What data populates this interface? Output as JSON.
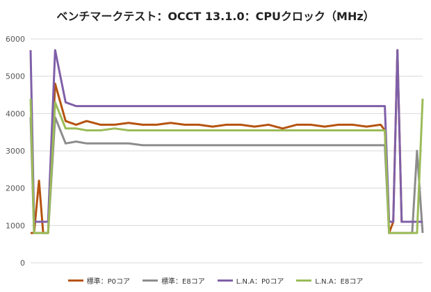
{
  "chart_data": {
    "type": "line",
    "title": "ベンチマークテスト：OCCT 13.1.0：CPUクロック（MHz）",
    "xlabel": "",
    "ylabel": "",
    "ylim": [
      0,
      6000
    ],
    "yticks": [
      "0",
      "1000",
      "2000",
      "3000",
      "4000",
      "5000",
      "6000"
    ],
    "grid": true,
    "legend_position": "bottom",
    "x": [
      0,
      5,
      12,
      18,
      25,
      35,
      50,
      65,
      80,
      100,
      120,
      140,
      160,
      180,
      200,
      220,
      240,
      260,
      280,
      300,
      320,
      340,
      360,
      380,
      400,
      420,
      440,
      460,
      480,
      500,
      506,
      512,
      518,
      524,
      530,
      536,
      540,
      545,
      552,
      560
    ],
    "series": [
      {
        "name": "標準：P0コア",
        "color": "#b5530f",
        "values": [
          800,
          800,
          2200,
          800,
          800,
          4800,
          3800,
          3700,
          3800,
          3700,
          3700,
          3750,
          3700,
          3700,
          3750,
          3700,
          3700,
          3650,
          3700,
          3700,
          3650,
          3700,
          3600,
          3700,
          3700,
          3650,
          3700,
          3700,
          3650,
          3700,
          3550,
          800,
          1100,
          5700,
          1100,
          1100,
          1100,
          1100,
          1100,
          1100
        ]
      },
      {
        "name": "標準：E8コア",
        "color": "#8c8c8c",
        "values": [
          3900,
          800,
          800,
          800,
          800,
          3900,
          3200,
          3250,
          3200,
          3200,
          3200,
          3200,
          3150,
          3150,
          3150,
          3150,
          3150,
          3150,
          3150,
          3150,
          3150,
          3150,
          3150,
          3150,
          3150,
          3150,
          3150,
          3150,
          3150,
          3150,
          3150,
          800,
          800,
          800,
          800,
          800,
          800,
          800,
          3000,
          800
        ]
      },
      {
        "name": "L.N.A：P0コア",
        "color": "#7f5fa8",
        "values": [
          5700,
          1100,
          1100,
          1100,
          1100,
          5700,
          4300,
          4200,
          4200,
          4200,
          4200,
          4200,
          4200,
          4200,
          4200,
          4200,
          4200,
          4200,
          4200,
          4200,
          4200,
          4200,
          4200,
          4200,
          4200,
          4200,
          4200,
          4200,
          4200,
          4200,
          4200,
          1100,
          1100,
          5700,
          1100,
          1100,
          1100,
          1100,
          1100,
          1100
        ]
      },
      {
        "name": "L.N.A：E8コア",
        "color": "#9bbb59",
        "values": [
          4400,
          800,
          800,
          800,
          800,
          4300,
          3600,
          3600,
          3550,
          3550,
          3600,
          3550,
          3550,
          3550,
          3550,
          3550,
          3550,
          3550,
          3550,
          3550,
          3550,
          3550,
          3550,
          3550,
          3550,
          3550,
          3550,
          3550,
          3550,
          3550,
          3550,
          800,
          800,
          800,
          800,
          800,
          800,
          800,
          800,
          4400
        ]
      }
    ]
  }
}
